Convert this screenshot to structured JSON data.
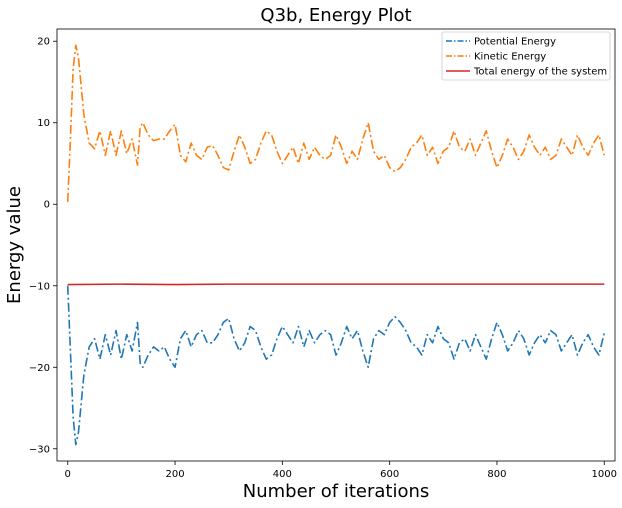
{
  "chart_data": {
    "type": "line",
    "title": "Q3b, Energy Plot",
    "xlabel": "Number of iterations",
    "ylabel": "Energy value",
    "xlim": [
      -20,
      1020
    ],
    "ylim": [
      -31.5,
      21.5
    ],
    "xticks": [
      0,
      200,
      400,
      600,
      800,
      1000
    ],
    "yticks": [
      -30,
      -20,
      -10,
      0,
      10,
      20
    ],
    "grid": false,
    "legend_position": "top-right",
    "series": [
      {
        "name": "Potential Energy",
        "color": "#1f77b4",
        "style": "dashdot",
        "x": [
          0,
          5,
          10,
          15,
          20,
          30,
          40,
          50,
          60,
          70,
          80,
          90,
          100,
          110,
          120,
          130,
          135,
          140,
          150,
          160,
          170,
          180,
          190,
          200,
          210,
          220,
          230,
          240,
          250,
          260,
          270,
          280,
          290,
          300,
          310,
          320,
          330,
          340,
          350,
          360,
          370,
          380,
          390,
          400,
          410,
          420,
          430,
          440,
          450,
          460,
          470,
          480,
          490,
          500,
          510,
          520,
          530,
          540,
          550,
          560,
          570,
          580,
          590,
          600,
          610,
          620,
          630,
          640,
          650,
          660,
          670,
          680,
          690,
          700,
          710,
          720,
          730,
          740,
          750,
          760,
          770,
          780,
          790,
          800,
          810,
          820,
          830,
          840,
          850,
          860,
          870,
          880,
          890,
          900,
          910,
          920,
          930,
          940,
          950,
          960,
          970,
          980,
          990,
          1000
        ],
        "values": [
          -10.0,
          -18.0,
          -26.0,
          -29.5,
          -28.0,
          -21.0,
          -17.5,
          -16.5,
          -19.0,
          -16.0,
          -18.5,
          -15.5,
          -19.0,
          -16.0,
          -18.0,
          -14.5,
          -19.5,
          -20.0,
          -18.5,
          -17.5,
          -18.0,
          -17.5,
          -19.0,
          -20.0,
          -16.5,
          -15.5,
          -17.5,
          -16.0,
          -15.5,
          -17.0,
          -17.0,
          -16.0,
          -14.5,
          -14.0,
          -16.5,
          -18.0,
          -17.0,
          -15.0,
          -15.5,
          -17.5,
          -19.0,
          -18.5,
          -16.5,
          -15.0,
          -16.0,
          -17.0,
          -15.0,
          -17.5,
          -15.5,
          -17.0,
          -16.0,
          -15.5,
          -16.0,
          -18.5,
          -17.0,
          -15.0,
          -16.5,
          -15.5,
          -18.0,
          -20.0,
          -16.5,
          -15.5,
          -16.0,
          -14.5,
          -13.8,
          -14.5,
          -15.5,
          -17.0,
          -17.5,
          -18.5,
          -16.0,
          -17.0,
          -15.0,
          -16.5,
          -17.0,
          -19.0,
          -17.0,
          -16.5,
          -18.0,
          -16.0,
          -17.5,
          -19.0,
          -16.5,
          -14.5,
          -16.0,
          -18.0,
          -17.0,
          -15.5,
          -16.5,
          -18.5,
          -17.0,
          -16.0,
          -17.0,
          -15.5,
          -16.0,
          -18.0,
          -17.0,
          -16.0,
          -18.5,
          -17.0,
          -16.0,
          -17.5,
          -18.5,
          -15.8
        ]
      },
      {
        "name": "Kinetic Energy",
        "color": "#ff7f0e",
        "style": "dashdot",
        "x": [
          0,
          5,
          10,
          15,
          20,
          30,
          40,
          50,
          60,
          70,
          80,
          90,
          100,
          110,
          120,
          130,
          135,
          140,
          150,
          160,
          170,
          180,
          190,
          200,
          210,
          220,
          230,
          240,
          250,
          260,
          270,
          280,
          290,
          300,
          310,
          320,
          330,
          340,
          350,
          360,
          370,
          380,
          390,
          400,
          410,
          420,
          430,
          440,
          450,
          460,
          470,
          480,
          490,
          500,
          510,
          520,
          530,
          540,
          550,
          560,
          570,
          580,
          590,
          600,
          610,
          620,
          630,
          640,
          650,
          660,
          670,
          680,
          690,
          700,
          710,
          720,
          730,
          740,
          750,
          760,
          770,
          780,
          790,
          800,
          810,
          820,
          830,
          840,
          850,
          860,
          870,
          880,
          890,
          900,
          910,
          920,
          930,
          940,
          950,
          960,
          970,
          980,
          990,
          1000
        ],
        "values": [
          0.3,
          8.0,
          16.5,
          19.5,
          18.0,
          11.0,
          7.5,
          6.8,
          9.0,
          6.0,
          9.0,
          6.0,
          9.0,
          6.2,
          8.0,
          4.8,
          9.5,
          10.0,
          8.5,
          7.8,
          8.0,
          8.0,
          9.0,
          9.8,
          6.0,
          5.2,
          7.5,
          6.0,
          5.5,
          7.0,
          7.2,
          6.0,
          4.5,
          4.2,
          6.5,
          8.5,
          7.0,
          5.0,
          5.5,
          7.5,
          9.0,
          8.5,
          6.5,
          5.0,
          6.0,
          7.0,
          5.0,
          7.5,
          5.5,
          7.0,
          6.0,
          5.5,
          6.0,
          8.5,
          7.0,
          5.0,
          6.5,
          5.5,
          8.0,
          10.0,
          6.5,
          5.5,
          6.0,
          4.5,
          4.0,
          4.5,
          5.5,
          7.0,
          7.5,
          8.5,
          6.0,
          7.0,
          5.0,
          6.5,
          7.0,
          9.0,
          7.0,
          6.5,
          8.0,
          6.0,
          7.5,
          9.0,
          6.5,
          4.5,
          6.0,
          8.0,
          7.0,
          5.5,
          6.5,
          8.5,
          7.0,
          6.0,
          7.0,
          5.5,
          6.0,
          8.0,
          7.0,
          6.0,
          8.5,
          7.0,
          6.0,
          7.5,
          8.5,
          6.0
        ]
      },
      {
        "name": "Total energy of the system",
        "color": "#d62728",
        "style": "solid",
        "x": [
          0,
          100,
          200,
          300,
          400,
          500,
          600,
          700,
          800,
          900,
          1000
        ],
        "values": [
          -9.85,
          -9.8,
          -9.85,
          -9.8,
          -9.8,
          -9.8,
          -9.8,
          -9.8,
          -9.8,
          -9.8,
          -9.8
        ]
      }
    ]
  }
}
